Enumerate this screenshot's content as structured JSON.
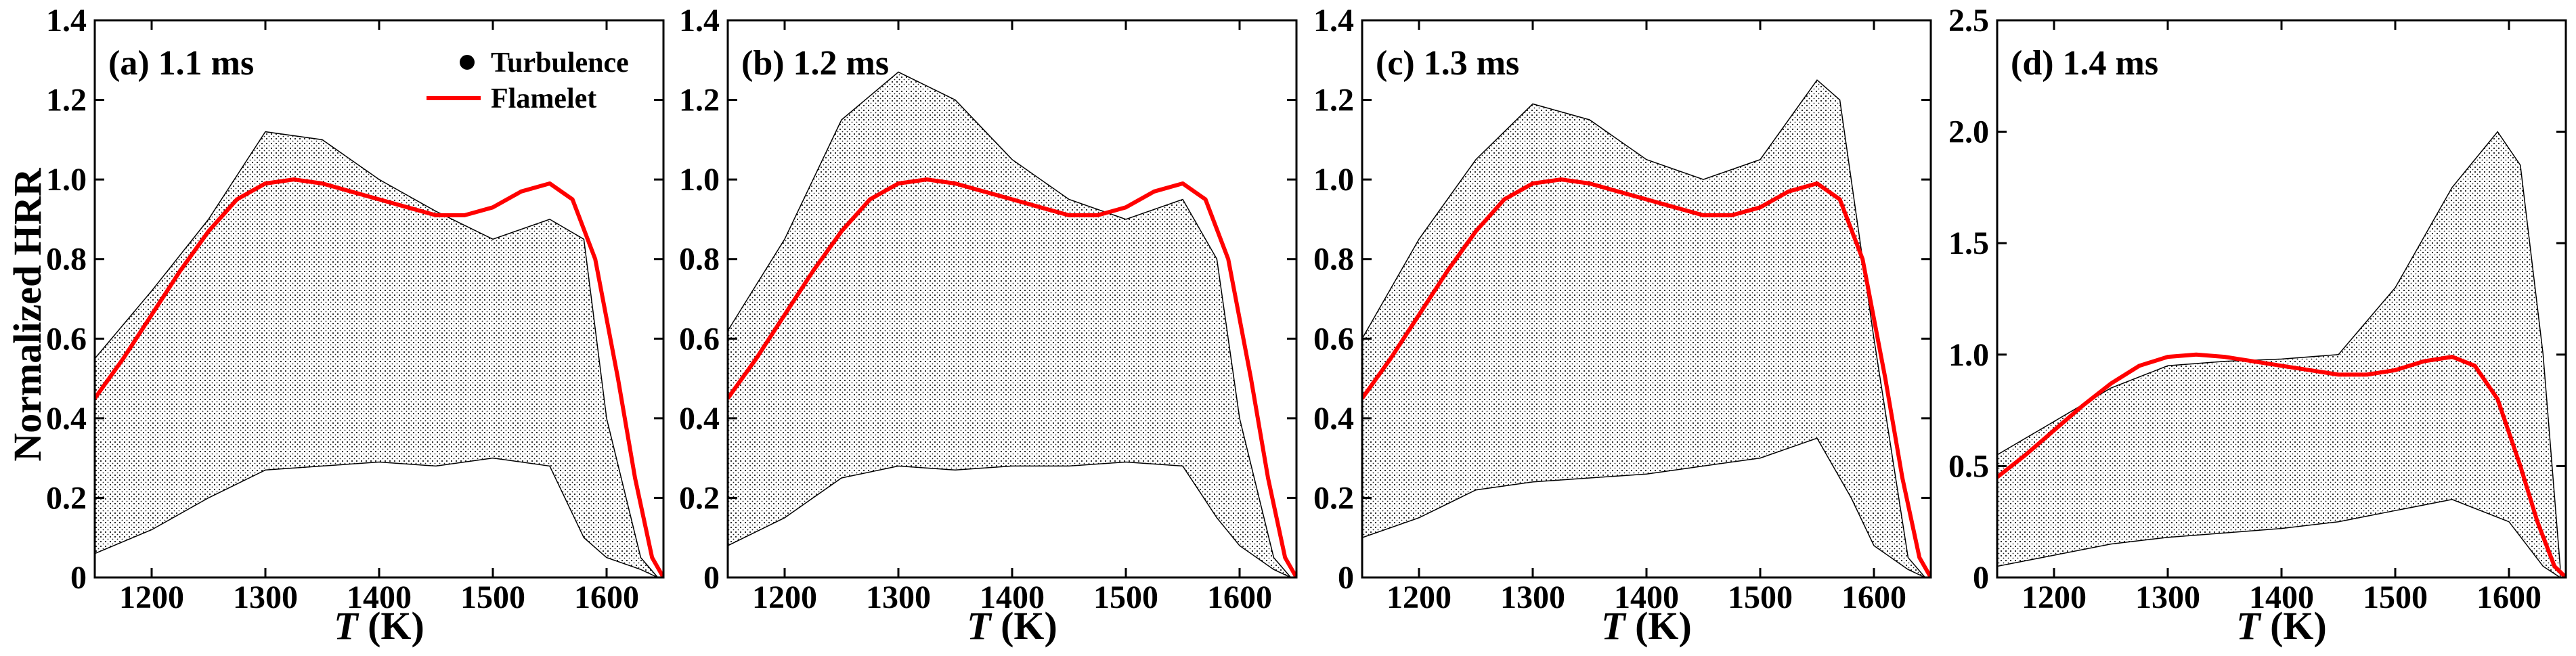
{
  "figure": {
    "ylabel": "Normalized HRR",
    "xlabel_var": "T",
    "xlabel_unit": " (K)"
  },
  "colors": {
    "flamelet": "#ff0000",
    "turbulence": "#000000",
    "axes": "#000000"
  },
  "chart_data": [
    {
      "type": "scatter",
      "title": "(a) 1.1 ms",
      "xlim": [
        1150,
        1650
      ],
      "ylim": [
        0,
        1.4
      ],
      "xticks": [
        1200,
        1300,
        1400,
        1500,
        1600
      ],
      "yticks": [
        0,
        0.2,
        0.4,
        0.6,
        0.8,
        1.0,
        1.2,
        1.4
      ],
      "ytick_labels": [
        "0",
        "0.2",
        "0.4",
        "0.6",
        "0.8",
        "1.0",
        "1.2",
        "1.4"
      ],
      "legend": {
        "entries": [
          "Turbulence",
          "Flamelet"
        ],
        "position": "top-right"
      },
      "turbulence_envelope": {
        "upper": [
          [
            1150,
            0.55
          ],
          [
            1200,
            0.72
          ],
          [
            1250,
            0.9
          ],
          [
            1300,
            1.12
          ],
          [
            1350,
            1.1
          ],
          [
            1400,
            1.0
          ],
          [
            1450,
            0.92
          ],
          [
            1500,
            0.85
          ],
          [
            1550,
            0.9
          ],
          [
            1580,
            0.85
          ],
          [
            1600,
            0.4
          ],
          [
            1630,
            0.05
          ],
          [
            1645,
            0.0
          ]
        ],
        "lower": [
          [
            1150,
            0.06
          ],
          [
            1200,
            0.12
          ],
          [
            1250,
            0.2
          ],
          [
            1300,
            0.27
          ],
          [
            1350,
            0.28
          ],
          [
            1400,
            0.29
          ],
          [
            1450,
            0.28
          ],
          [
            1500,
            0.3
          ],
          [
            1550,
            0.28
          ],
          [
            1580,
            0.1
          ],
          [
            1600,
            0.05
          ],
          [
            1630,
            0.02
          ],
          [
            1645,
            0.0
          ]
        ]
      },
      "flamelet": {
        "x": [
          1150,
          1175,
          1200,
          1225,
          1250,
          1275,
          1300,
          1325,
          1350,
          1375,
          1400,
          1425,
          1450,
          1475,
          1500,
          1525,
          1550,
          1570,
          1590,
          1610,
          1625,
          1640,
          1650
        ],
        "y": [
          0.45,
          0.55,
          0.66,
          0.77,
          0.87,
          0.95,
          0.99,
          1.0,
          0.99,
          0.97,
          0.95,
          0.93,
          0.91,
          0.91,
          0.93,
          0.97,
          0.99,
          0.95,
          0.8,
          0.5,
          0.25,
          0.05,
          0.0
        ]
      }
    },
    {
      "type": "scatter",
      "title": "(b) 1.2 ms",
      "xlim": [
        1150,
        1650
      ],
      "ylim": [
        0,
        1.4
      ],
      "xticks": [
        1200,
        1300,
        1400,
        1500,
        1600
      ],
      "yticks": [
        0,
        0.2,
        0.4,
        0.6,
        0.8,
        1.0,
        1.2,
        1.4
      ],
      "ytick_labels": [
        "0",
        "0.2",
        "0.4",
        "0.6",
        "0.8",
        "1.0",
        "1.2",
        "1.4"
      ],
      "turbulence_envelope": {
        "upper": [
          [
            1150,
            0.62
          ],
          [
            1200,
            0.85
          ],
          [
            1250,
            1.15
          ],
          [
            1300,
            1.27
          ],
          [
            1350,
            1.2
          ],
          [
            1400,
            1.05
          ],
          [
            1450,
            0.95
          ],
          [
            1500,
            0.9
          ],
          [
            1550,
            0.95
          ],
          [
            1580,
            0.8
          ],
          [
            1600,
            0.4
          ],
          [
            1630,
            0.05
          ],
          [
            1645,
            0.0
          ]
        ],
        "lower": [
          [
            1150,
            0.08
          ],
          [
            1200,
            0.15
          ],
          [
            1250,
            0.25
          ],
          [
            1300,
            0.28
          ],
          [
            1350,
            0.27
          ],
          [
            1400,
            0.28
          ],
          [
            1450,
            0.28
          ],
          [
            1500,
            0.29
          ],
          [
            1550,
            0.28
          ],
          [
            1580,
            0.15
          ],
          [
            1600,
            0.08
          ],
          [
            1630,
            0.02
          ],
          [
            1645,
            0.0
          ]
        ]
      },
      "flamelet": {
        "x": [
          1150,
          1175,
          1200,
          1225,
          1250,
          1275,
          1300,
          1325,
          1350,
          1375,
          1400,
          1425,
          1450,
          1475,
          1500,
          1525,
          1550,
          1570,
          1590,
          1610,
          1625,
          1640,
          1650
        ],
        "y": [
          0.45,
          0.55,
          0.66,
          0.77,
          0.87,
          0.95,
          0.99,
          1.0,
          0.99,
          0.97,
          0.95,
          0.93,
          0.91,
          0.91,
          0.93,
          0.97,
          0.99,
          0.95,
          0.8,
          0.5,
          0.25,
          0.05,
          0.0
        ]
      }
    },
    {
      "type": "scatter",
      "title": "(c) 1.3 ms",
      "xlim": [
        1150,
        1650
      ],
      "ylim": [
        0,
        1.4
      ],
      "xticks": [
        1200,
        1300,
        1400,
        1500,
        1600
      ],
      "yticks": [
        0,
        0.2,
        0.4,
        0.6,
        0.8,
        1.0,
        1.2,
        1.4
      ],
      "ytick_labels": [
        "0",
        "0.2",
        "0.4",
        "0.6",
        "0.8",
        "1.0",
        "1.2",
        "1.4"
      ],
      "turbulence_envelope": {
        "upper": [
          [
            1150,
            0.6
          ],
          [
            1200,
            0.85
          ],
          [
            1250,
            1.05
          ],
          [
            1300,
            1.19
          ],
          [
            1350,
            1.15
          ],
          [
            1400,
            1.05
          ],
          [
            1450,
            1.0
          ],
          [
            1500,
            1.05
          ],
          [
            1550,
            1.25
          ],
          [
            1570,
            1.2
          ],
          [
            1600,
            0.6
          ],
          [
            1630,
            0.05
          ],
          [
            1645,
            0.0
          ]
        ],
        "lower": [
          [
            1150,
            0.1
          ],
          [
            1200,
            0.15
          ],
          [
            1250,
            0.22
          ],
          [
            1300,
            0.24
          ],
          [
            1350,
            0.25
          ],
          [
            1400,
            0.26
          ],
          [
            1450,
            0.28
          ],
          [
            1500,
            0.3
          ],
          [
            1550,
            0.35
          ],
          [
            1580,
            0.2
          ],
          [
            1600,
            0.08
          ],
          [
            1630,
            0.02
          ],
          [
            1645,
            0.0
          ]
        ]
      },
      "flamelet": {
        "x": [
          1150,
          1175,
          1200,
          1225,
          1250,
          1275,
          1300,
          1325,
          1350,
          1375,
          1400,
          1425,
          1450,
          1475,
          1500,
          1525,
          1550,
          1570,
          1590,
          1610,
          1625,
          1640,
          1650
        ],
        "y": [
          0.45,
          0.55,
          0.66,
          0.77,
          0.87,
          0.95,
          0.99,
          1.0,
          0.99,
          0.97,
          0.95,
          0.93,
          0.91,
          0.91,
          0.93,
          0.97,
          0.99,
          0.95,
          0.8,
          0.5,
          0.25,
          0.05,
          0.0
        ]
      }
    },
    {
      "type": "scatter",
      "title": "(d) 1.4 ms",
      "xlim": [
        1150,
        1650
      ],
      "ylim": [
        0,
        2.5
      ],
      "xticks": [
        1200,
        1300,
        1400,
        1500,
        1600
      ],
      "yticks": [
        0,
        0.5,
        1.0,
        1.5,
        2.0,
        2.5
      ],
      "ytick_labels": [
        "0",
        "0.5",
        "1.0",
        "1.5",
        "2.0",
        "2.5"
      ],
      "turbulence_envelope": {
        "upper": [
          [
            1150,
            0.55
          ],
          [
            1200,
            0.7
          ],
          [
            1250,
            0.85
          ],
          [
            1300,
            0.95
          ],
          [
            1350,
            0.97
          ],
          [
            1400,
            0.98
          ],
          [
            1450,
            1.0
          ],
          [
            1500,
            1.3
          ],
          [
            1550,
            1.75
          ],
          [
            1590,
            2.0
          ],
          [
            1610,
            1.85
          ],
          [
            1630,
            1.0
          ],
          [
            1645,
            0.05
          ]
        ],
        "lower": [
          [
            1150,
            0.05
          ],
          [
            1200,
            0.1
          ],
          [
            1250,
            0.15
          ],
          [
            1300,
            0.18
          ],
          [
            1350,
            0.2
          ],
          [
            1400,
            0.22
          ],
          [
            1450,
            0.25
          ],
          [
            1500,
            0.3
          ],
          [
            1550,
            0.35
          ],
          [
            1600,
            0.25
          ],
          [
            1630,
            0.05
          ],
          [
            1645,
            0.0
          ]
        ]
      },
      "flamelet": {
        "x": [
          1150,
          1175,
          1200,
          1225,
          1250,
          1275,
          1300,
          1325,
          1350,
          1375,
          1400,
          1425,
          1450,
          1475,
          1500,
          1525,
          1550,
          1570,
          1590,
          1610,
          1625,
          1640,
          1650
        ],
        "y": [
          0.45,
          0.55,
          0.66,
          0.77,
          0.87,
          0.95,
          0.99,
          1.0,
          0.99,
          0.97,
          0.95,
          0.93,
          0.91,
          0.91,
          0.93,
          0.97,
          0.99,
          0.95,
          0.8,
          0.5,
          0.25,
          0.05,
          0.0
        ]
      }
    }
  ]
}
